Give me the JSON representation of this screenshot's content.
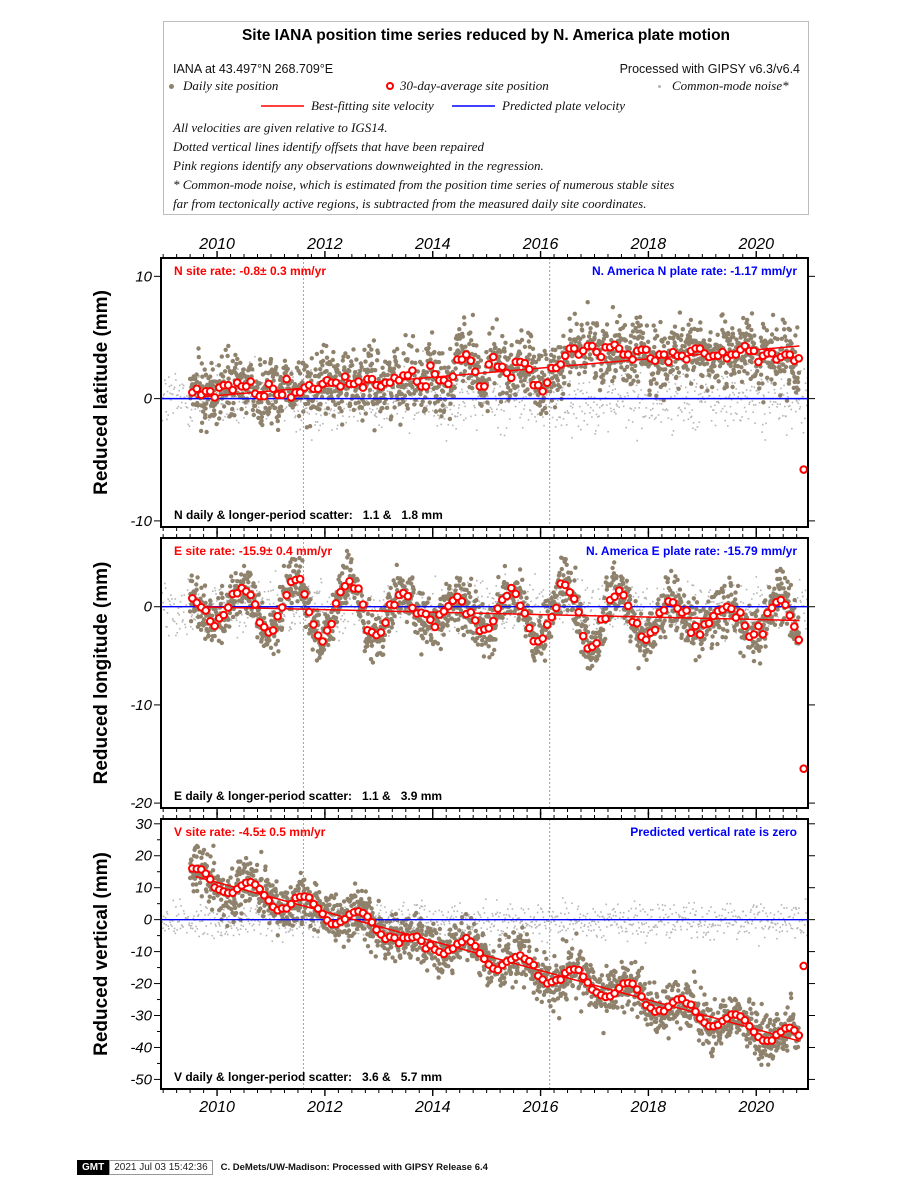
{
  "legend": {
    "title": "Site IANA position time series reduced by N. America plate motion",
    "site_coords": "IANA at 43.497°N 268.709°E",
    "processed": "Processed with GIPSY v6.3/v6.4",
    "items": [
      {
        "label": "Daily site position",
        "color": "#8f826d"
      },
      {
        "label": "30-day-average site position",
        "color": "#ff0000"
      },
      {
        "label": "Common-mode noise*",
        "color": "#aaaaaa"
      },
      {
        "label": "Best-fitting site velocity",
        "color": "#ff0000"
      },
      {
        "label": "Predicted plate velocity",
        "color": "#0000ff"
      }
    ],
    "notes": [
      "All velocities are given relative to IGS14.",
      "Dotted vertical lines identify offsets that have been repaired",
      "Pink regions identify any observations downweighted in the regression.",
      "* Common-mode noise, which is estimated from the position time series of numerous stable sites",
      "far from tectonically active regions, is subtracted from the measured daily site coordinates."
    ]
  },
  "chart_data": {
    "type": "scatter",
    "title": "Site IANA position time series reduced by N. America plate motion",
    "xlim": [
      2008.96,
      2020.96
    ],
    "x_ticks": [
      2010,
      2012,
      2014,
      2016,
      2018,
      2020
    ],
    "x_tick_labels": [
      "2010",
      "2012",
      "2014",
      "2016",
      "2018",
      "2020"
    ],
    "offsets": [
      2011.6,
      2016.17
    ],
    "data_span": [
      2009.5,
      2020.8
    ],
    "colors": {
      "daily": "#8f826d",
      "average": "#ff0000",
      "common_mode": "#b5b5b5",
      "fit": "#ff0000",
      "plate": "#0000ff",
      "offset_line": "#888888"
    },
    "panels": [
      {
        "key": "N",
        "ylabel": "Reduced latitude (mm)",
        "ylim": [
          -10.5,
          11.5
        ],
        "y_ticks": [
          10,
          0,
          -10
        ],
        "y_tick_labels": [
          "10",
          "0",
          "-10"
        ],
        "site_rate_label": "N site rate:  -0.8± 0.3 mm/yr",
        "plate_rate_label": "N. America N plate rate: -1.17 mm/yr",
        "scatter_label": "N daily & longer-period scatter:   1.1 &   1.8 mm",
        "daily_scatter_mm": 1.1,
        "fit_line": [
          [
            2009.6,
            0.1
          ],
          [
            2020.8,
            4.3
          ]
        ],
        "plate_line": 0,
        "averages": [
          0.5,
          0.8,
          0.3,
          0.6,
          0.1,
          0.9,
          1.1,
          0.7,
          1.3,
          1.0,
          1.4,
          0.4,
          0.2,
          1.2,
          0.8,
          0.3,
          1.6,
          0.1,
          0.5,
          0.9,
          1.1,
          0.8,
          1.2,
          1.5,
          1.3,
          1.0,
          1.8,
          1.2,
          1.4,
          0.9,
          1.6,
          1.1,
          1.0,
          1.3,
          1.7,
          1.5,
          1.9,
          2.3,
          1.4,
          1.0,
          2.7,
          2.0,
          1.5,
          1.2,
          1.8,
          3.2,
          3.6,
          3.1,
          2.2,
          1.0,
          2.8,
          3.4,
          2.6,
          2.1,
          1.7,
          3.0,
          2.9,
          2.4,
          1.1,
          0.6,
          1.3,
          2.5,
          2.8,
          3.5,
          4.1,
          3.6,
          3.9,
          4.3,
          3.8,
          3.4,
          4.2,
          4.4,
          4.1,
          3.6,
          3.2,
          3.9,
          4.0,
          3.3,
          3.1,
          3.6,
          3.0,
          3.8,
          3.5,
          3.2,
          3.9,
          4.1,
          3.7,
          3.4,
          3.5,
          3.8,
          3.3,
          3.6,
          4.0,
          4.3,
          3.9,
          3.0,
          3.5,
          3.7,
          3.2,
          3.4,
          3.6,
          3.1,
          3.3
        ],
        "outlier": [
          2020.88,
          -5.8
        ]
      },
      {
        "key": "E",
        "ylabel": "Reduced longitude (mm)",
        "ylim": [
          -20.5,
          7.0
        ],
        "y_ticks": [
          0,
          -10,
          -20
        ],
        "y_tick_labels": [
          "0",
          "-10",
          "-20"
        ],
        "site_rate_label": "E site rate: -15.9± 0.4 mm/yr",
        "plate_rate_label": "N. America E plate rate: -15.79 mm/yr",
        "scatter_label": "E daily & longer-period scatter:   1.1 &   3.9 mm",
        "daily_scatter_mm": 1.1,
        "fit_line": [
          [
            2009.6,
            0.0
          ],
          [
            2020.8,
            -1.4
          ]
        ],
        "plate_line": 0,
        "seasonal_amplitude_mm": 2.8,
        "outlier": [
          2020.88,
          -16.5
        ]
      },
      {
        "key": "V",
        "ylabel": "Reduced vertical (mm)",
        "ylim": [
          -53,
          31.5
        ],
        "y_ticks": [
          30,
          20,
          10,
          0,
          -10,
          -20,
          -30,
          -40,
          -50
        ],
        "y_tick_labels": [
          "30",
          "20",
          "10",
          "0",
          "-10",
          "-20",
          "-30",
          "-40",
          "-50"
        ],
        "site_rate_label": "V site rate:  -4.5± 0.5 mm/yr",
        "plate_rate_label": "Predicted vertical rate is zero",
        "scatter_label": "V daily & longer-period scatter:   3.6 &   5.7 mm",
        "daily_scatter_mm": 3.6,
        "fit_line": [
          [
            2009.6,
            13.5
          ],
          [
            2020.8,
            -38.0
          ]
        ],
        "plate_line": 0,
        "outlier": [
          2020.88,
          -14.5
        ]
      }
    ]
  },
  "footer": {
    "logo": "GMT",
    "timestamp": "2021 Jul 03 15:42:36",
    "credit": "C. DeMets/UW-Madison: Processed with GIPSY Release 6.4"
  }
}
